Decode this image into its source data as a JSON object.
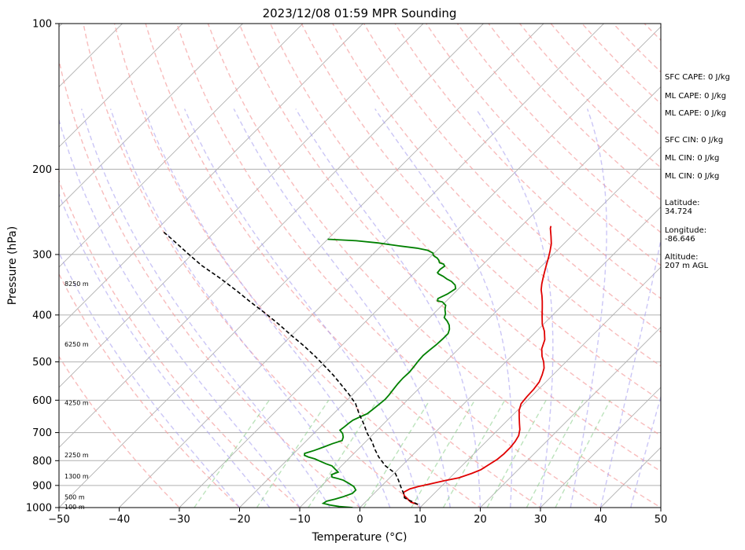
{
  "chart_data": {
    "type": "line",
    "title": "2023/12/08 01:59 MPR Sounding",
    "xlabel": "Temperature (°C)",
    "ylabel": "Pressure (hPa)",
    "xlim": [
      -50,
      50
    ],
    "ylim": [
      1000,
      100
    ],
    "y_scale": "log",
    "x_ticks": [
      -50,
      -40,
      -30,
      -20,
      -10,
      0,
      10,
      20,
      30,
      40,
      50
    ],
    "y_ticks": [
      1000,
      900,
      800,
      700,
      600,
      500,
      400,
      300,
      200,
      100
    ],
    "grid": true,
    "skew_t": true,
    "series": [
      {
        "color": "#e00000",
        "points": [
          [
            9.1,
            985
          ],
          [
            7.6,
            975
          ],
          [
            6.5,
            960
          ],
          [
            5.4,
            945
          ],
          [
            4.7,
            930
          ],
          [
            5.2,
            915
          ],
          [
            6.2,
            905
          ],
          [
            7.6,
            895
          ],
          [
            9.6,
            880
          ],
          [
            11.5,
            868
          ],
          [
            12.9,
            850
          ],
          [
            13.8,
            835
          ],
          [
            14.3,
            815
          ],
          [
            14.8,
            795
          ],
          [
            15.0,
            775
          ],
          [
            15.0,
            750
          ],
          [
            14.8,
            730
          ],
          [
            14.4,
            710
          ],
          [
            13.6,
            690
          ],
          [
            12.5,
            670
          ],
          [
            11.4,
            650
          ],
          [
            10.3,
            630
          ],
          [
            9.5,
            610
          ],
          [
            9.3,
            590
          ],
          [
            9.2,
            570
          ],
          [
            8.9,
            550
          ],
          [
            8.2,
            532
          ],
          [
            7.4,
            515
          ],
          [
            6.3,
            500
          ],
          [
            5.1,
            487
          ],
          [
            3.8,
            470
          ],
          [
            2.8,
            450
          ],
          [
            1.3,
            432
          ],
          [
            -0.2,
            418
          ],
          [
            -1.6,
            402
          ],
          [
            -2.9,
            387
          ],
          [
            -4.0,
            375
          ],
          [
            -5.0,
            365
          ],
          [
            -6.1,
            355
          ],
          [
            -7.0,
            345
          ],
          [
            -7.8,
            335
          ],
          [
            -8.6,
            325
          ],
          [
            -9.4,
            315
          ],
          [
            -10.2,
            305
          ],
          [
            -11.1,
            295
          ],
          [
            -12.1,
            285
          ],
          [
            -13.4,
            275
          ],
          [
            -14.8,
            265
          ],
          [
            -15.1,
            262
          ]
        ]
      },
      {
        "color": "#008000",
        "points": [
          [
            -1.2,
            1000
          ],
          [
            -3.6,
            995
          ],
          [
            -5.4,
            988
          ],
          [
            -6.8,
            980
          ],
          [
            -6.6,
            970
          ],
          [
            -5.5,
            960
          ],
          [
            -4.6,
            950
          ],
          [
            -3.6,
            935
          ],
          [
            -3.6,
            920
          ],
          [
            -4.5,
            905
          ],
          [
            -6.0,
            890
          ],
          [
            -7.3,
            878
          ],
          [
            -8.7,
            870
          ],
          [
            -9.7,
            865
          ],
          [
            -10.2,
            855
          ],
          [
            -9.5,
            845
          ],
          [
            -10.5,
            833
          ],
          [
            -11.6,
            820
          ],
          [
            -12.9,
            812
          ],
          [
            -14.2,
            803
          ],
          [
            -15.6,
            793
          ],
          [
            -17.0,
            786
          ],
          [
            -17.9,
            780
          ],
          [
            -18.2,
            773
          ],
          [
            -17.1,
            762
          ],
          [
            -16.1,
            750
          ],
          [
            -15.2,
            738
          ],
          [
            -14.1,
            727
          ],
          [
            -14.5,
            715
          ],
          [
            -15.2,
            703
          ],
          [
            -16.2,
            692
          ],
          [
            -16.0,
            680
          ],
          [
            -15.9,
            670
          ],
          [
            -15.7,
            660
          ],
          [
            -15.1,
            650
          ],
          [
            -14.4,
            640
          ],
          [
            -14.2,
            628
          ],
          [
            -14.0,
            613
          ],
          [
            -13.8,
            598
          ],
          [
            -13.9,
            585
          ],
          [
            -14.1,
            570
          ],
          [
            -14.3,
            555
          ],
          [
            -14.4,
            540
          ],
          [
            -14.3,
            525
          ],
          [
            -14.5,
            510
          ],
          [
            -14.7,
            497
          ],
          [
            -14.8,
            485
          ],
          [
            -14.6,
            472
          ],
          [
            -14.4,
            460
          ],
          [
            -14.3,
            448
          ],
          [
            -14.3,
            437
          ],
          [
            -14.8,
            428
          ],
          [
            -15.5,
            420
          ],
          [
            -16.5,
            412
          ],
          [
            -17.6,
            405
          ],
          [
            -18.0,
            398
          ],
          [
            -18.8,
            390
          ],
          [
            -19.4,
            382
          ],
          [
            -20.5,
            376
          ],
          [
            -21.5,
            374
          ],
          [
            -21.8,
            370
          ],
          [
            -21.0,
            362
          ],
          [
            -20.5,
            353
          ],
          [
            -21.2,
            347
          ],
          [
            -22.4,
            341
          ],
          [
            -23.6,
            337
          ],
          [
            -24.6,
            333
          ],
          [
            -25.8,
            329
          ],
          [
            -26.2,
            327
          ],
          [
            -26.3,
            322
          ],
          [
            -26.1,
            317
          ],
          [
            -26.6,
            314
          ],
          [
            -27.5,
            312
          ],
          [
            -28.1,
            308
          ],
          [
            -28.7,
            305
          ],
          [
            -29.3,
            303
          ],
          [
            -29.8,
            301
          ],
          [
            -30.2,
            298
          ],
          [
            -31.6,
            294
          ],
          [
            -33.7,
            291
          ],
          [
            -37.0,
            288
          ],
          [
            -41.0,
            284
          ],
          [
            -45.0,
            281
          ],
          [
            -50.0,
            279
          ]
        ]
      },
      {
        "color": "#000000",
        "dashed": true,
        "points": [
          [
            9.1,
            985
          ],
          [
            5.8,
            955
          ],
          [
            4.9,
            935
          ],
          [
            3.3,
            905
          ],
          [
            1.8,
            877
          ],
          [
            0.2,
            850
          ],
          [
            -2.7,
            820
          ],
          [
            -5.3,
            786
          ],
          [
            -7.2,
            758
          ],
          [
            -9.0,
            730
          ],
          [
            -11.1,
            703
          ],
          [
            -13.4,
            670
          ],
          [
            -15.6,
            642
          ],
          [
            -18.0,
            610
          ],
          [
            -20.7,
            583
          ],
          [
            -23.6,
            557
          ],
          [
            -26.4,
            533
          ],
          [
            -29.4,
            510
          ],
          [
            -32.6,
            487
          ],
          [
            -36.1,
            464
          ],
          [
            -40.0,
            441
          ],
          [
            -44.0,
            418
          ],
          [
            -48.2,
            396
          ],
          [
            -52.6,
            375
          ],
          [
            -57.1,
            354
          ],
          [
            -61.6,
            335
          ],
          [
            -66.6,
            316
          ],
          [
            -71.0,
            298
          ],
          [
            -75.6,
            280
          ],
          [
            -78.9,
            268
          ]
        ]
      }
    ],
    "height_labels": [
      {
        "p": 1000,
        "text": "100 m"
      },
      {
        "p": 955,
        "text": "500 m"
      },
      {
        "p": 865,
        "text": "1300 m"
      },
      {
        "p": 781,
        "text": "2250 m"
      },
      {
        "p": 609,
        "text": "4250 m"
      },
      {
        "p": 461,
        "text": "6250 m"
      },
      {
        "p": 346,
        "text": "8250 m"
      }
    ]
  },
  "side_info": {
    "sfc_cape": "SFC CAPE: 0 J/kg",
    "ml_cape_1": "ML CAPE: 0 J/kg",
    "ml_cape_2": "ML CAPE: 0 J/kg",
    "sfc_cin": "SFC CIN: 0 J/kg",
    "ml_cin_1": "ML CIN: 0 J/kg",
    "ml_cin_2": "ML CIN: 0 J/kg",
    "latitude": "Latitude:\n34.724",
    "longitude": "Longitude:\n-86.646",
    "altitude": "Altitude:\n207 m AGL"
  }
}
